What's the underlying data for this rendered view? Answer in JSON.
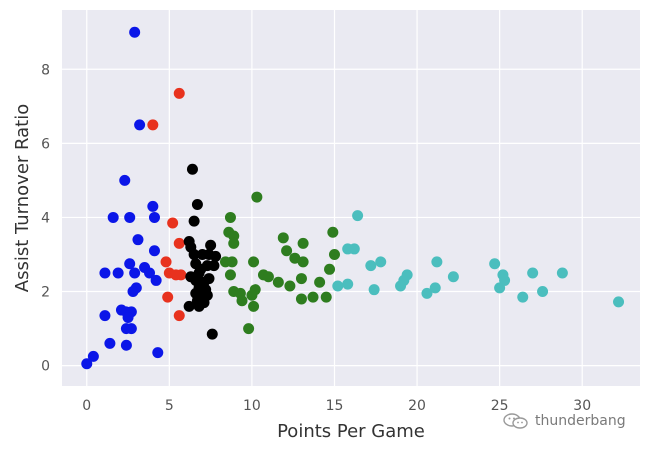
{
  "chart_data": {
    "type": "scatter",
    "title": "",
    "xlabel": "Points Per Game",
    "ylabel": "Assist Turnover Ratio",
    "xlim": [
      -1.5,
      33.5
    ],
    "ylim": [
      -0.55,
      9.6
    ],
    "xticks": [
      0,
      5,
      10,
      15,
      20,
      25,
      30
    ],
    "yticks": [
      0,
      2,
      4,
      6,
      8
    ],
    "grid": true,
    "background": "#eaeaf2",
    "series": [
      {
        "color": "#0b16e8",
        "points": [
          [
            2.9,
            9.0
          ],
          [
            3.2,
            6.5
          ],
          [
            2.3,
            5.0
          ],
          [
            4.0,
            4.3
          ],
          [
            1.6,
            4.0
          ],
          [
            2.6,
            4.0
          ],
          [
            4.1,
            4.0
          ],
          [
            3.1,
            3.4
          ],
          [
            4.1,
            3.1
          ],
          [
            2.6,
            2.75
          ],
          [
            3.5,
            2.65
          ],
          [
            1.1,
            2.5
          ],
          [
            1.9,
            2.5
          ],
          [
            2.9,
            2.5
          ],
          [
            3.8,
            2.5
          ],
          [
            4.2,
            2.3
          ],
          [
            3.0,
            2.1
          ],
          [
            2.8,
            2.0
          ],
          [
            2.1,
            1.5
          ],
          [
            2.4,
            1.45
          ],
          [
            2.7,
            1.45
          ],
          [
            1.1,
            1.35
          ],
          [
            2.5,
            1.3
          ],
          [
            2.7,
            1.0
          ],
          [
            2.4,
            1.0
          ],
          [
            1.4,
            0.6
          ],
          [
            2.4,
            0.55
          ],
          [
            4.3,
            0.35
          ],
          [
            0.4,
            0.25
          ],
          [
            0.0,
            0.05
          ]
        ]
      },
      {
        "color": "#e8321e",
        "points": [
          [
            5.6,
            7.35
          ],
          [
            4.0,
            6.5
          ],
          [
            5.2,
            3.85
          ],
          [
            5.6,
            3.3
          ],
          [
            4.8,
            2.8
          ],
          [
            5.0,
            2.5
          ],
          [
            5.4,
            2.45
          ],
          [
            5.7,
            2.45
          ],
          [
            4.9,
            1.85
          ],
          [
            5.6,
            1.35
          ]
        ]
      },
      {
        "color": "#000000",
        "points": [
          [
            6.4,
            5.3
          ],
          [
            6.7,
            4.35
          ],
          [
            6.5,
            3.9
          ],
          [
            6.2,
            3.35
          ],
          [
            6.3,
            3.2
          ],
          [
            7.5,
            3.25
          ],
          [
            6.5,
            3.0
          ],
          [
            7.0,
            3.0
          ],
          [
            7.4,
            3.0
          ],
          [
            7.8,
            2.95
          ],
          [
            6.6,
            2.75
          ],
          [
            7.3,
            2.7
          ],
          [
            7.7,
            2.7
          ],
          [
            6.9,
            2.6
          ],
          [
            6.8,
            2.5
          ],
          [
            6.3,
            2.4
          ],
          [
            7.4,
            2.35
          ],
          [
            6.6,
            2.3
          ],
          [
            7.1,
            2.25
          ],
          [
            6.8,
            2.1
          ],
          [
            7.2,
            2.05
          ],
          [
            6.6,
            1.95
          ],
          [
            7.3,
            1.9
          ],
          [
            6.9,
            1.85
          ],
          [
            6.7,
            1.75
          ],
          [
            7.1,
            1.7
          ],
          [
            6.2,
            1.6
          ],
          [
            6.8,
            1.6
          ],
          [
            7.6,
            0.85
          ]
        ]
      },
      {
        "color": "#2e7d1f",
        "points": [
          [
            10.3,
            4.55
          ],
          [
            8.7,
            4.0
          ],
          [
            8.6,
            3.6
          ],
          [
            14.9,
            3.6
          ],
          [
            8.9,
            3.5
          ],
          [
            11.9,
            3.45
          ],
          [
            8.9,
            3.3
          ],
          [
            13.1,
            3.3
          ],
          [
            12.1,
            3.1
          ],
          [
            15.0,
            3.0
          ],
          [
            12.6,
            2.9
          ],
          [
            8.4,
            2.8
          ],
          [
            8.8,
            2.8
          ],
          [
            10.1,
            2.8
          ],
          [
            13.1,
            2.8
          ],
          [
            14.7,
            2.6
          ],
          [
            8.7,
            2.45
          ],
          [
            10.7,
            2.45
          ],
          [
            11.0,
            2.4
          ],
          [
            13.0,
            2.35
          ],
          [
            11.6,
            2.25
          ],
          [
            14.1,
            2.25
          ],
          [
            12.3,
            2.15
          ],
          [
            10.2,
            2.05
          ],
          [
            8.9,
            2.0
          ],
          [
            9.3,
            1.95
          ],
          [
            10.0,
            1.9
          ],
          [
            13.7,
            1.85
          ],
          [
            14.5,
            1.85
          ],
          [
            13.0,
            1.8
          ],
          [
            9.4,
            1.75
          ],
          [
            10.1,
            1.6
          ],
          [
            9.8,
            1.0
          ]
        ]
      },
      {
        "color": "#4bbebe",
        "points": [
          [
            16.4,
            4.05
          ],
          [
            15.8,
            3.15
          ],
          [
            16.2,
            3.15
          ],
          [
            17.8,
            2.8
          ],
          [
            21.2,
            2.8
          ],
          [
            17.2,
            2.7
          ],
          [
            24.7,
            2.75
          ],
          [
            27.0,
            2.5
          ],
          [
            28.8,
            2.5
          ],
          [
            19.4,
            2.45
          ],
          [
            25.2,
            2.45
          ],
          [
            22.2,
            2.4
          ],
          [
            19.2,
            2.3
          ],
          [
            25.3,
            2.3
          ],
          [
            15.8,
            2.2
          ],
          [
            15.2,
            2.15
          ],
          [
            19.0,
            2.15
          ],
          [
            21.1,
            2.1
          ],
          [
            25.0,
            2.1
          ],
          [
            17.4,
            2.05
          ],
          [
            27.6,
            2.0
          ],
          [
            20.6,
            1.95
          ],
          [
            26.4,
            1.85
          ],
          [
            32.2,
            1.72
          ]
        ]
      }
    ]
  },
  "watermark": {
    "text": "thunderbang",
    "icon": "wechat-icon"
  }
}
